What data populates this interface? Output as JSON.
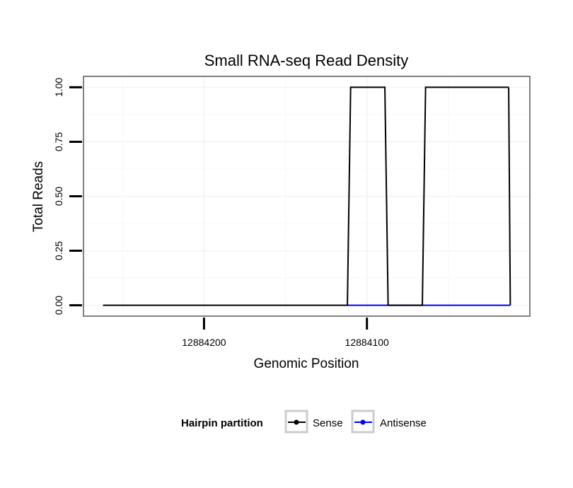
{
  "chart_data": {
    "type": "line",
    "title": "Small RNA-seq Read Density",
    "xlabel": "Genomic Position",
    "ylabel": "Total Reads",
    "x_reversed": true,
    "xlim": [
      12884274,
      12884000
    ],
    "ylim": [
      -0.05,
      1.05
    ],
    "x_ticks": [
      12884200,
      12884100
    ],
    "x_tick_labels": [
      "12884200",
      "12884100"
    ],
    "y_ticks": [
      0,
      0.25,
      0.5,
      0.75,
      1
    ],
    "y_tick_labels": [
      "0.00",
      "0.25",
      "0.50",
      "0.75",
      "1.00"
    ],
    "grid": true,
    "legend_position": "bottom",
    "legend_title": "Hairpin partition",
    "series": [
      {
        "name": "Sense",
        "color": "#000000",
        "x": [
          12884262,
          12884112,
          12884110,
          12884089,
          12884087,
          12884066,
          12884064,
          12884013
        ],
        "y": [
          0,
          0,
          1,
          1,
          0,
          0,
          1,
          1
        ]
      },
      {
        "name": "Antisense",
        "color": "#0000ff",
        "x": [
          12884112,
          12884012
        ],
        "y": [
          0,
          0
        ]
      }
    ],
    "sense_return": {
      "x": [
        12884013,
        12884012
      ],
      "y": [
        1,
        0
      ]
    }
  }
}
